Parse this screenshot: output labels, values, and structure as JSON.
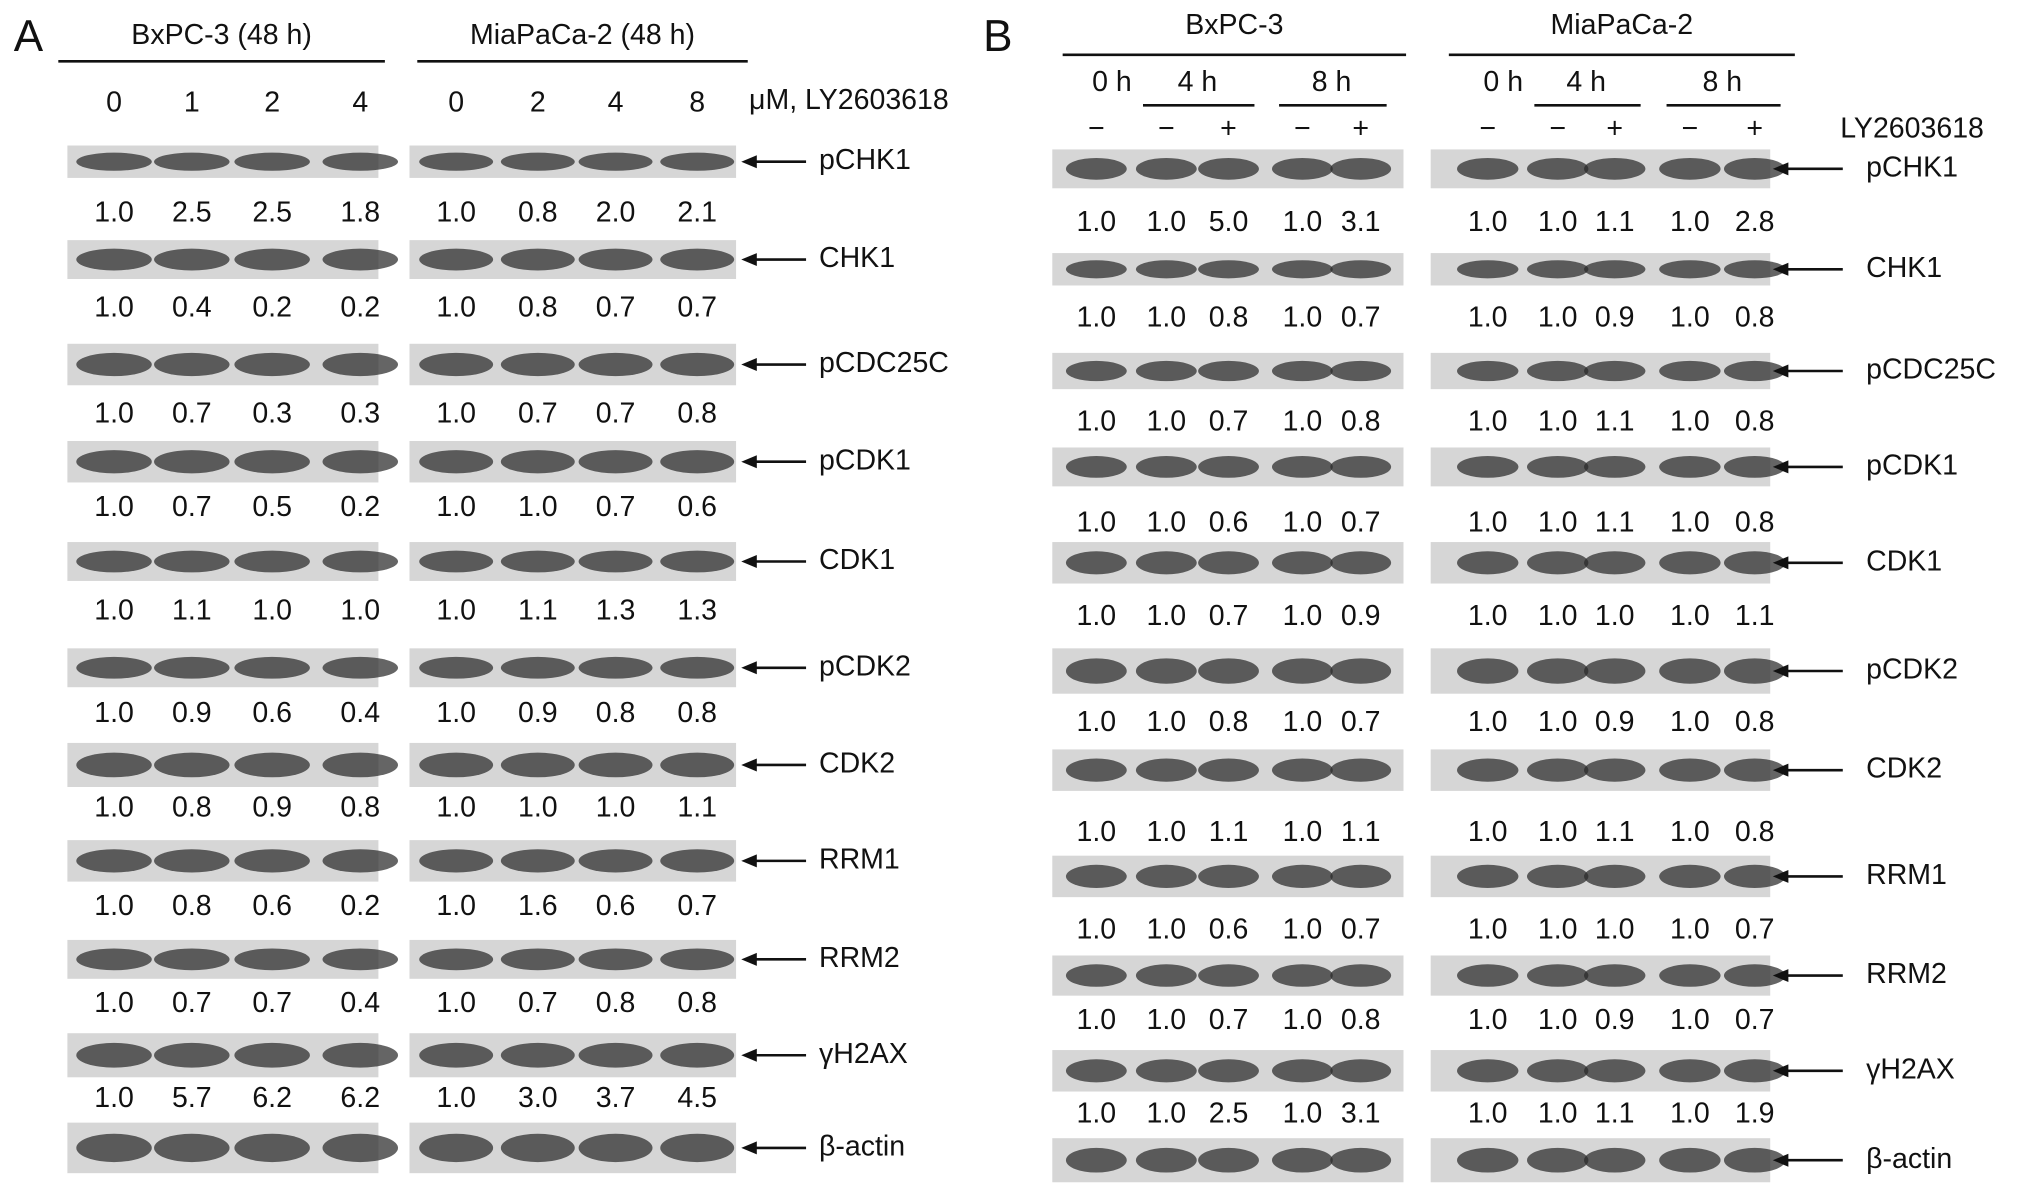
{
  "panels": [
    {
      "label": "A",
      "groups": [
        {
          "name": "BxPC-3 (48 h)",
          "lanes": [
            "0",
            "1",
            "2",
            "4"
          ]
        },
        {
          "name": "MiaPaCa-2 (48 h)",
          "lanes": [
            "0",
            "2",
            "4",
            "8"
          ]
        }
      ],
      "lane_unit": "μM, LY2603618",
      "rows": [
        {
          "protein": "pCHK1",
          "values": [
            [
              "1.0",
              "2.5",
              "2.5",
              "1.8"
            ],
            [
              "1.0",
              "0.8",
              "2.0",
              "2.1"
            ]
          ]
        },
        {
          "protein": "CHK1",
          "values": [
            [
              "1.0",
              "0.4",
              "0.2",
              "0.2"
            ],
            [
              "1.0",
              "0.8",
              "0.7",
              "0.7"
            ]
          ]
        },
        {
          "protein": "pCDC25C",
          "values": [
            [
              "1.0",
              "0.7",
              "0.3",
              "0.3"
            ],
            [
              "1.0",
              "0.7",
              "0.7",
              "0.8"
            ]
          ]
        },
        {
          "protein": "pCDK1",
          "values": [
            [
              "1.0",
              "0.7",
              "0.5",
              "0.2"
            ],
            [
              "1.0",
              "1.0",
              "0.7",
              "0.6"
            ]
          ]
        },
        {
          "protein": "CDK1",
          "values": [
            [
              "1.0",
              "1.1",
              "1.0",
              "1.0"
            ],
            [
              "1.0",
              "1.1",
              "1.3",
              "1.3"
            ]
          ]
        },
        {
          "protein": "pCDK2",
          "values": [
            [
              "1.0",
              "0.9",
              "0.6",
              "0.4"
            ],
            [
              "1.0",
              "0.9",
              "0.8",
              "0.8"
            ]
          ]
        },
        {
          "protein": "CDK2",
          "values": [
            [
              "1.0",
              "0.8",
              "0.9",
              "0.8"
            ],
            [
              "1.0",
              "1.0",
              "1.0",
              "1.1"
            ]
          ]
        },
        {
          "protein": "RRM1",
          "values": [
            [
              "1.0",
              "0.8",
              "0.6",
              "0.2"
            ],
            [
              "1.0",
              "1.6",
              "0.6",
              "0.7"
            ]
          ]
        },
        {
          "protein": "RRM2",
          "values": [
            [
              "1.0",
              "0.7",
              "0.7",
              "0.4"
            ],
            [
              "1.0",
              "0.7",
              "0.8",
              "0.8"
            ]
          ]
        },
        {
          "protein": "γH2AX",
          "values": [
            [
              "1.0",
              "5.7",
              "6.2",
              "6.2"
            ],
            [
              "1.0",
              "3.0",
              "3.7",
              "4.5"
            ]
          ]
        },
        {
          "protein": "β-actin"
        }
      ]
    },
    {
      "label": "B",
      "groups": [
        {
          "name": "BxPC-3",
          "times": [
            "0 h",
            "4 h",
            "8 h"
          ],
          "treatment": [
            "−",
            "−",
            "+",
            "−",
            "+"
          ]
        },
        {
          "name": "MiaPaCa-2",
          "times": [
            "0 h",
            "4 h",
            "8 h"
          ],
          "treatment": [
            "−",
            "−",
            "+",
            "−",
            "+"
          ]
        }
      ],
      "treatment_label": "LY2603618",
      "rows": [
        {
          "protein": "pCHK1",
          "values": [
            [
              "1.0",
              "1.0",
              "5.0",
              "1.0",
              "3.1"
            ],
            [
              "1.0",
              "1.0",
              "1.1",
              "1.0",
              "2.8"
            ]
          ]
        },
        {
          "protein": "CHK1",
          "values": [
            [
              "1.0",
              "1.0",
              "0.8",
              "1.0",
              "0.7"
            ],
            [
              "1.0",
              "1.0",
              "0.9",
              "1.0",
              "0.8"
            ]
          ]
        },
        {
          "protein": "pCDC25C",
          "values": [
            [
              "1.0",
              "1.0",
              "0.7",
              "1.0",
              "0.8"
            ],
            [
              "1.0",
              "1.0",
              "1.1",
              "1.0",
              "0.8"
            ]
          ]
        },
        {
          "protein": "pCDK1",
          "values": [
            [
              "1.0",
              "1.0",
              "0.6",
              "1.0",
              "0.7"
            ],
            [
              "1.0",
              "1.0",
              "1.1",
              "1.0",
              "0.8"
            ]
          ]
        },
        {
          "protein": "CDK1",
          "values": [
            [
              "1.0",
              "1.0",
              "0.7",
              "1.0",
              "0.9"
            ],
            [
              "1.0",
              "1.0",
              "1.0",
              "1.0",
              "1.1"
            ]
          ]
        },
        {
          "protein": "pCDK2",
          "values": [
            [
              "1.0",
              "1.0",
              "0.8",
              "1.0",
              "0.7"
            ],
            [
              "1.0",
              "1.0",
              "0.9",
              "1.0",
              "0.8"
            ]
          ]
        },
        {
          "protein": "CDK2",
          "values": [
            [
              "1.0",
              "1.0",
              "1.1",
              "1.0",
              "1.1"
            ],
            [
              "1.0",
              "1.0",
              "1.1",
              "1.0",
              "0.8"
            ]
          ]
        },
        {
          "protein": "RRM1",
          "values": [
            [
              "1.0",
              "1.0",
              "0.6",
              "1.0",
              "0.7"
            ],
            [
              "1.0",
              "1.0",
              "1.0",
              "1.0",
              "0.7"
            ]
          ]
        },
        {
          "protein": "RRM2",
          "values": [
            [
              "1.0",
              "1.0",
              "0.7",
              "1.0",
              "0.8"
            ],
            [
              "1.0",
              "1.0",
              "0.9",
              "1.0",
              "0.7"
            ]
          ]
        },
        {
          "protein": "γH2AX",
          "values": [
            [
              "1.0",
              "1.0",
              "2.5",
              "1.0",
              "3.1"
            ],
            [
              "1.0",
              "1.0",
              "1.1",
              "1.0",
              "1.9"
            ]
          ]
        },
        {
          "protein": "β-actin"
        }
      ]
    }
  ]
}
